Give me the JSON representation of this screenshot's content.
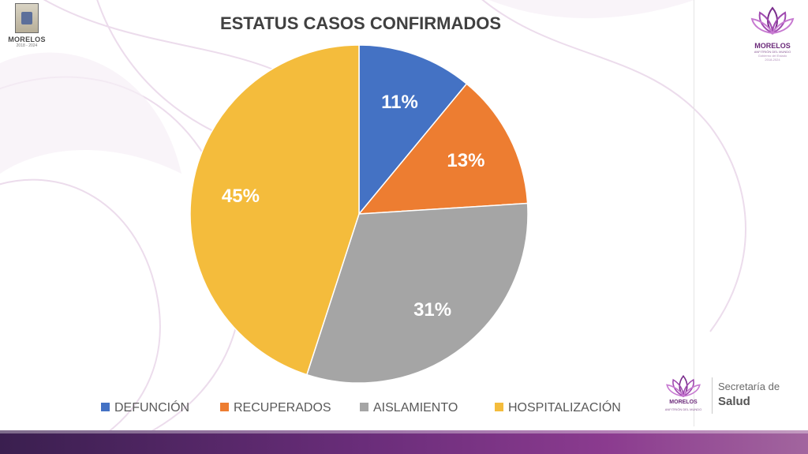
{
  "branding": {
    "left_logo_name": "MORELOS",
    "left_logo_years": "2018 - 2024",
    "right_logo_name": "MORELOS",
    "right_logo_tagline": "ANFITRIÓN DEL MUNDO",
    "right_logo_sub": "Gobierno del Estado",
    "right_logo_years": "2018-2024",
    "footer_logo_name": "MORELOS",
    "footer_logo_tagline": "ANFITRIÓN DEL MUNDO",
    "footer_org_line1": "Secretaría de",
    "footer_org_line2": "Salud"
  },
  "chart_data": {
    "type": "pie",
    "title": "ESTATUS CASOS CONFIRMADOS",
    "categories": [
      "DEFUNCIÓN",
      "RECUPERADOS",
      "AISLAMIENTO",
      "HOSPITALIZACIÓN"
    ],
    "values": [
      11,
      13,
      31,
      45
    ],
    "labels": [
      "11%",
      "13%",
      "31%",
      "45%"
    ],
    "colors": [
      "#4472c4",
      "#ed7d31",
      "#a5a5a5",
      "#f4bc3c"
    ],
    "start_angle": "12 o'clock",
    "direction": "clockwise",
    "legend_position": "bottom"
  },
  "colors": {
    "title": "#404040",
    "accent_purple": "#6b2a7a"
  }
}
